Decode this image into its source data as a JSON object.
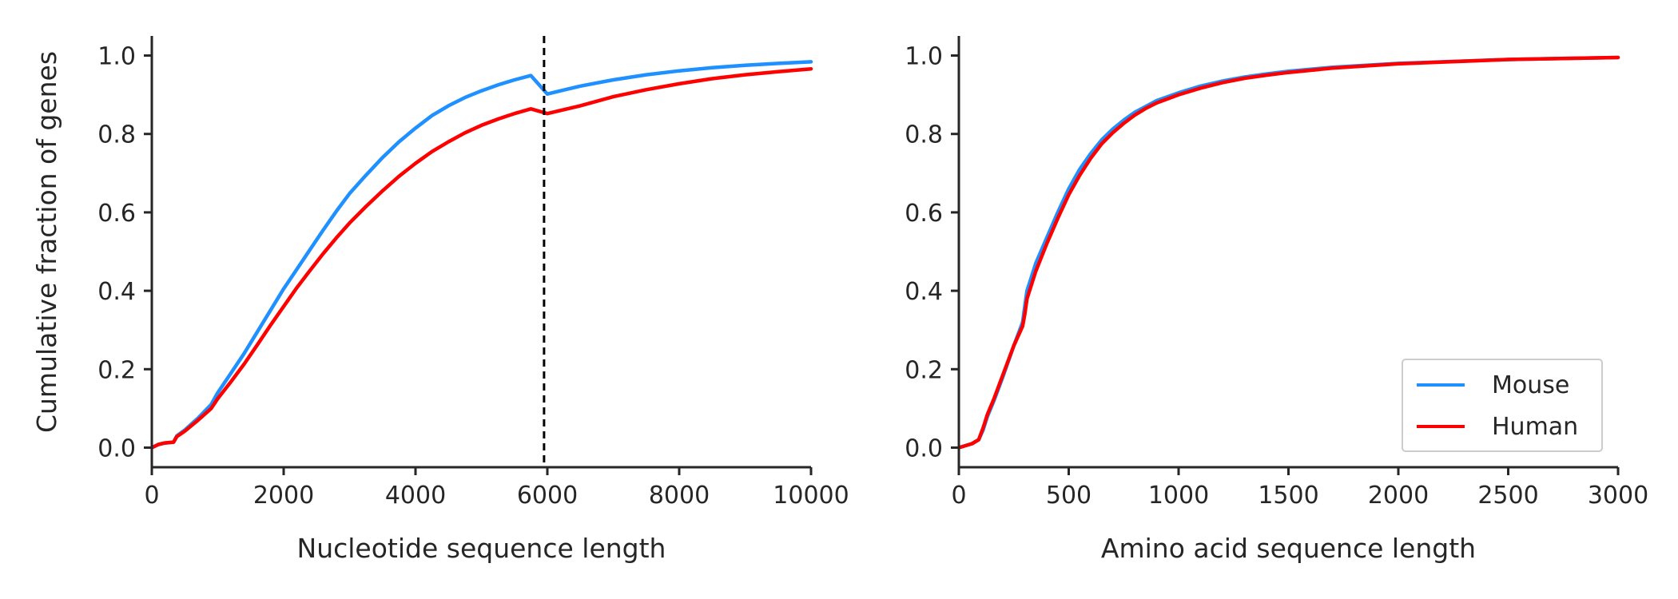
{
  "chart_data": [
    {
      "type": "line",
      "xlabel": "Nucleotide sequence length",
      "ylabel": "Cumulative fraction of genes",
      "xlim": [
        0,
        10000
      ],
      "ylim": [
        -0.05,
        1.05
      ],
      "xticks": [
        0,
        2000,
        4000,
        6000,
        8000,
        10000
      ],
      "xtick_labels": [
        "0",
        "2000",
        "4000",
        "6000",
        "8000",
        "10000"
      ],
      "yticks": [
        0.0,
        0.2,
        0.4,
        0.6,
        0.8,
        1.0
      ],
      "ytick_labels": [
        "0.0",
        "0.2",
        "0.4",
        "0.6",
        "0.8",
        "1.0"
      ],
      "grid": false,
      "vline": {
        "x": 5950,
        "style": "dashed",
        "color": "#000000"
      },
      "series": [
        {
          "name": "Mouse",
          "color": "#1e90ff",
          "x": [
            0,
            100,
            200,
            330,
            380,
            500,
            700,
            900,
            1000,
            1200,
            1400,
            1600,
            1800,
            2000,
            2200,
            2400,
            2600,
            2800,
            3000,
            3250,
            3500,
            3750,
            4000,
            4250,
            4500,
            4750,
            5000,
            5250,
            5500,
            5750,
            6000,
            6250,
            6500,
            7000,
            7500,
            8000,
            8500,
            9000,
            9500,
            10000
          ],
          "y": [
            0.0,
            0.008,
            0.012,
            0.014,
            0.03,
            0.045,
            0.075,
            0.11,
            0.14,
            0.19,
            0.24,
            0.295,
            0.35,
            0.405,
            0.455,
            0.505,
            0.555,
            0.603,
            0.648,
            0.695,
            0.74,
            0.78,
            0.815,
            0.847,
            0.872,
            0.893,
            0.91,
            0.925,
            0.938,
            0.949,
            0.902,
            0.912,
            0.922,
            0.938,
            0.951,
            0.961,
            0.969,
            0.975,
            0.98,
            0.984
          ]
        },
        {
          "name": "Human",
          "color": "#ff0000",
          "x": [
            0,
            100,
            200,
            330,
            380,
            500,
            700,
            900,
            1000,
            1200,
            1400,
            1600,
            1800,
            2000,
            2200,
            2400,
            2600,
            2800,
            3000,
            3250,
            3500,
            3750,
            4000,
            4250,
            4500,
            4750,
            5000,
            5250,
            5500,
            5750,
            6000,
            6250,
            6500,
            7000,
            7500,
            8000,
            8500,
            9000,
            9500,
            10000
          ],
          "y": [
            0.0,
            0.008,
            0.012,
            0.014,
            0.028,
            0.042,
            0.07,
            0.1,
            0.125,
            0.168,
            0.213,
            0.262,
            0.312,
            0.36,
            0.408,
            0.452,
            0.495,
            0.535,
            0.573,
            0.615,
            0.655,
            0.692,
            0.725,
            0.755,
            0.78,
            0.803,
            0.822,
            0.838,
            0.852,
            0.864,
            0.852,
            0.862,
            0.872,
            0.895,
            0.913,
            0.928,
            0.941,
            0.951,
            0.959,
            0.966
          ]
        }
      ]
    },
    {
      "type": "line",
      "xlabel": "Amino acid sequence length",
      "ylabel": "",
      "xlim": [
        0,
        3000
      ],
      "ylim": [
        -0.05,
        1.05
      ],
      "xticks": [
        0,
        500,
        1000,
        1500,
        2000,
        2500,
        3000
      ],
      "xtick_labels": [
        "0",
        "500",
        "1000",
        "1500",
        "2000",
        "2500",
        "3000"
      ],
      "yticks": [
        0.0,
        0.2,
        0.4,
        0.6,
        0.8,
        1.0
      ],
      "ytick_labels": [
        "0.0",
        "0.2",
        "0.4",
        "0.6",
        "0.8",
        "1.0"
      ],
      "grid": false,
      "legend": {
        "placement": "lower-right",
        "entries": [
          "Mouse",
          "Human"
        ]
      },
      "series": [
        {
          "name": "Mouse",
          "color": "#1e90ff",
          "x": [
            0,
            30,
            60,
            90,
            110,
            130,
            160,
            200,
            250,
            290,
            300,
            310,
            350,
            400,
            450,
            500,
            550,
            600,
            650,
            700,
            750,
            800,
            850,
            900,
            1000,
            1100,
            1200,
            1300,
            1400,
            1500,
            1700,
            2000,
            2500,
            3000
          ],
          "y": [
            0.0,
            0.005,
            0.01,
            0.02,
            0.045,
            0.08,
            0.12,
            0.18,
            0.26,
            0.32,
            0.36,
            0.4,
            0.47,
            0.535,
            0.6,
            0.66,
            0.71,
            0.75,
            0.785,
            0.812,
            0.835,
            0.855,
            0.87,
            0.885,
            0.905,
            0.922,
            0.935,
            0.945,
            0.953,
            0.96,
            0.97,
            0.98,
            0.99,
            0.995
          ]
        },
        {
          "name": "Human",
          "color": "#ff0000",
          "x": [
            0,
            30,
            60,
            90,
            110,
            130,
            160,
            200,
            250,
            290,
            300,
            310,
            350,
            400,
            450,
            500,
            550,
            600,
            650,
            700,
            750,
            800,
            850,
            900,
            1000,
            1100,
            1200,
            1300,
            1400,
            1500,
            1700,
            2000,
            2500,
            3000
          ],
          "y": [
            0.0,
            0.005,
            0.01,
            0.02,
            0.05,
            0.085,
            0.125,
            0.185,
            0.26,
            0.31,
            0.34,
            0.38,
            0.45,
            0.52,
            0.585,
            0.645,
            0.695,
            0.738,
            0.775,
            0.803,
            0.827,
            0.848,
            0.865,
            0.879,
            0.9,
            0.917,
            0.931,
            0.942,
            0.95,
            0.957,
            0.968,
            0.979,
            0.99,
            0.995
          ]
        }
      ]
    }
  ]
}
